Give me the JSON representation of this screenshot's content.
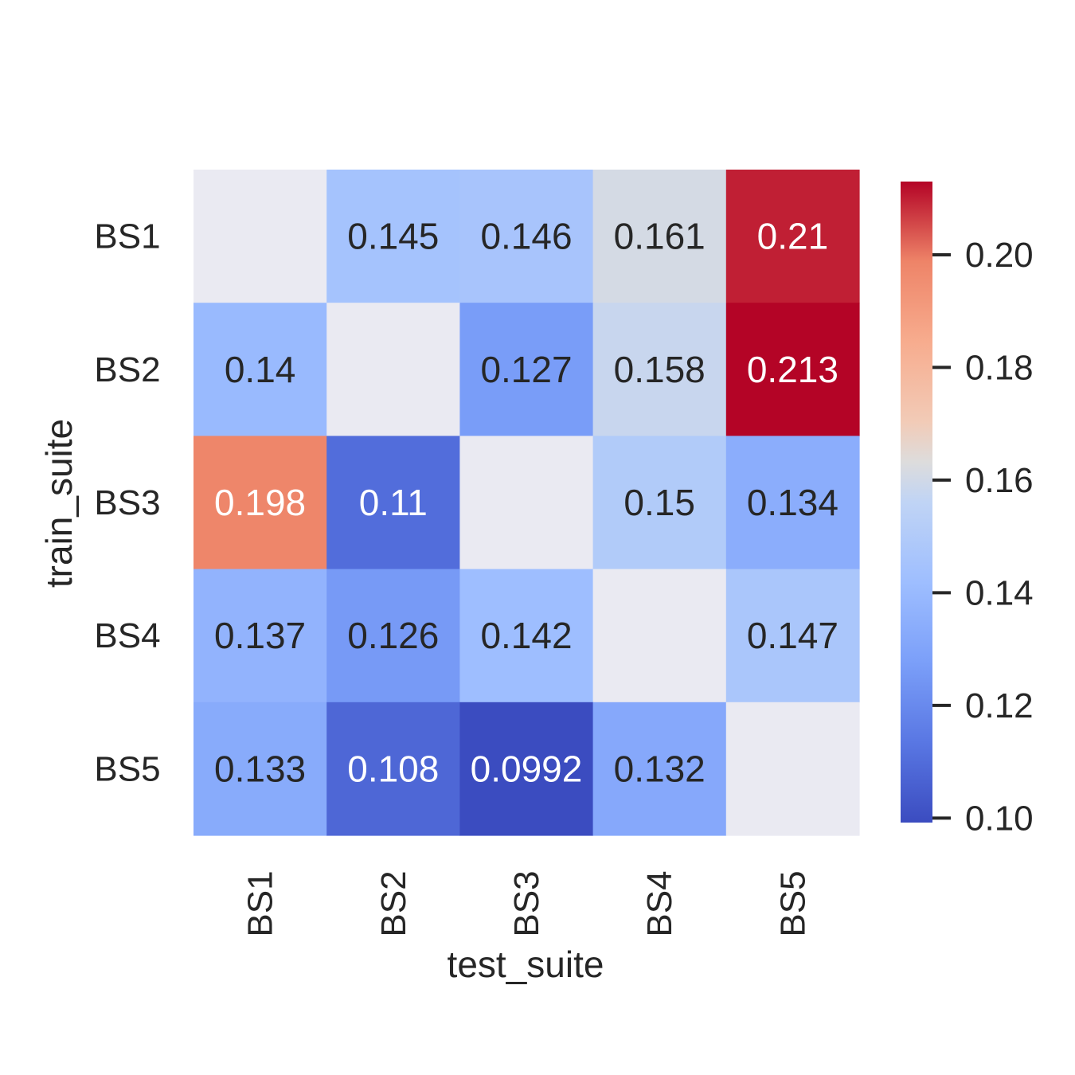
{
  "chart_data": {
    "type": "heatmap",
    "title": "",
    "xlabel": "test_suite",
    "ylabel": "train_suite",
    "x_categories": [
      "BS1",
      "BS2",
      "BS3",
      "BS4",
      "BS5"
    ],
    "y_categories": [
      "BS1",
      "BS2",
      "BS3",
      "BS4",
      "BS5"
    ],
    "values": [
      [
        null,
        0.145,
        0.146,
        0.161,
        0.21
      ],
      [
        0.14,
        null,
        0.127,
        0.158,
        0.213
      ],
      [
        0.198,
        0.11,
        null,
        0.15,
        0.134
      ],
      [
        0.137,
        0.126,
        0.142,
        null,
        0.147
      ],
      [
        0.133,
        0.108,
        0.0992,
        0.132,
        null
      ]
    ],
    "value_labels": [
      [
        "",
        "0.145",
        "0.146",
        "0.161",
        "0.21"
      ],
      [
        "0.14",
        "",
        "0.127",
        "0.158",
        "0.213"
      ],
      [
        "0.198",
        "0.11",
        "",
        "0.15",
        "0.134"
      ],
      [
        "0.137",
        "0.126",
        "0.142",
        "",
        "0.147"
      ],
      [
        "0.133",
        "0.108",
        "0.0992",
        "0.132",
        ""
      ]
    ],
    "colormap": "coolwarm",
    "missing_cell_color": "#eaeaf2",
    "vmin": 0.0992,
    "vmax": 0.213,
    "colorbar_ticks": [
      0.1,
      0.12,
      0.14,
      0.16,
      0.18,
      0.2
    ],
    "colorbar_tick_labels": [
      "0.10",
      "0.12",
      "0.14",
      "0.16",
      "0.18",
      "0.20"
    ],
    "grid": false,
    "legend": "colorbar-right"
  }
}
